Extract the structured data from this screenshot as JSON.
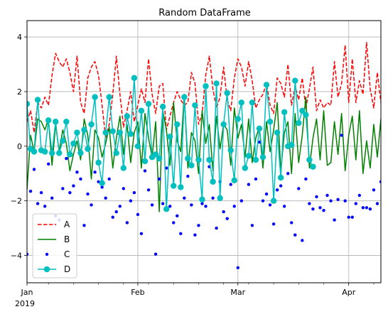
{
  "chart_data": {
    "type": "line",
    "title": "Random DataFrame",
    "xlabel": "",
    "ylabel": "",
    "x_start": "2019-01-01",
    "x_end": "2019-04-10",
    "xlim": [
      "2019-01-01",
      "2019-04-10"
    ],
    "ylim": [
      -5,
      4.6
    ],
    "y_ticks": [
      -4,
      -2,
      0,
      2,
      4
    ],
    "x_ticks": [
      {
        "date": "2019-01-01",
        "label": "Jan",
        "sublabel": "2019"
      },
      {
        "date": "2019-02-01",
        "label": "Feb",
        "sublabel": ""
      },
      {
        "date": "2019-03-01",
        "label": "Mar",
        "sublabel": ""
      },
      {
        "date": "2019-04-01",
        "label": "Apr",
        "sublabel": ""
      }
    ],
    "grid": true,
    "legend_position": "lower-left",
    "series": [
      {
        "name": "A",
        "color": "#ff0000",
        "style": "dashed",
        "values": [
          0.9,
          1.3,
          0.5,
          1.6,
          1.4,
          1.8,
          1.5,
          2.6,
          3.4,
          3.1,
          2.9,
          3.2,
          2.7,
          2.0,
          3.3,
          1.6,
          1.2,
          2.5,
          2.9,
          3.1,
          2.6,
          1.5,
          0.3,
          0.8,
          1.9,
          3.3,
          1.9,
          0.7,
          1.3,
          2.0,
          0.9,
          1.5,
          2.1,
          1.6,
          3.2,
          1.9,
          1.2,
          2.2,
          2.3,
          0.6,
          1.1,
          1.6,
          2.0,
          1.7,
          1.5,
          1.6,
          2.7,
          2.3,
          0.8,
          1.2,
          2.6,
          3.3,
          2.1,
          1.4,
          1.8,
          2.9,
          1.7,
          1.3,
          2.5,
          3.2,
          2.9,
          2.2,
          3.1,
          2.4,
          1.4,
          1.7,
          1.9,
          2.3,
          1.5,
          1.2,
          2.5,
          2.3,
          1.8,
          3.0,
          1.5,
          2.2,
          1.7,
          2.5,
          1.4,
          2.1,
          2.9,
          1.3,
          1.7,
          1.4,
          1.6,
          1.5,
          3.1,
          1.8,
          2.3,
          3.7,
          1.6,
          3.2,
          1.6,
          2.4,
          1.9,
          3.8,
          2.1,
          1.4,
          2.7,
          1.6,
          2.5,
          2.1,
          1.8,
          2.3,
          2.6,
          1.9,
          2.8,
          1.4,
          4.2,
          3.0,
          2.8,
          1.8,
          2.4,
          2.9,
          2.8,
          1.9,
          2.9
        ],
        "_note_x_indexed_by_day_from": "2019-01-01"
      },
      {
        "name": "B",
        "color": "#008000",
        "style": "solid",
        "values": [
          -1.6,
          0.4,
          -0.2,
          1.0,
          0.9,
          0.6,
          1.0,
          -0.7,
          0.8,
          -0.2,
          0.6,
          0.1,
          -0.9,
          -0.3,
          0.2,
          -0.5,
          1.0,
          0.4,
          -1.2,
          0.6,
          0.3,
          -0.4,
          0.1,
          0.7,
          -0.8,
          0.3,
          1.1,
          -0.3,
          0.8,
          -0.6,
          0.5,
          0.9,
          -0.8,
          1.2,
          0.3,
          -0.4,
          0.9,
          -2.4,
          1.3,
          0.6,
          -0.7,
          1.6,
          0.2,
          -0.2,
          1.9,
          -0.8,
          0.5,
          0.2,
          -1.0,
          1.3,
          0.1,
          0.8,
          -0.9,
          1.1,
          -0.1,
          0.8,
          0.6,
          -0.7,
          1.4,
          0.3,
          0.8,
          -0.4,
          1.0,
          -0.6,
          0.3,
          0.7,
          -0.8,
          0.9,
          -0.2,
          0.6,
          1.6,
          -0.9,
          0.5,
          0.9,
          -1.0,
          1.2,
          -0.6,
          0.4,
          1.8,
          -0.8,
          0.3,
          1.0,
          -0.5,
          1.3,
          -0.7,
          -0.6,
          0.9,
          -0.3,
          1.2,
          -0.9,
          0.4,
          1.1,
          -0.5,
          1.3,
          -1.0,
          0.2,
          -0.8,
          0.8,
          -0.4,
          1.0,
          -0.6,
          0.3,
          1.4,
          -0.9,
          0.7,
          -0.3,
          1.1,
          -0.5,
          0.6,
          -0.9,
          0.8,
          -0.4,
          0.2,
          1.6,
          -1.3,
          2.3,
          0.9,
          0.0
        ],
        "_note_x_indexed_by_day_from": "2019-01-01"
      },
      {
        "name": "C",
        "color": "#0000ff",
        "style": "points",
        "values": [
          -3.95,
          -1.65,
          -0.85,
          -2.1,
          -1.7,
          -2.2,
          -0.65,
          -1.9,
          -2.55,
          -2.7,
          -1.55,
          -0.45,
          -1.7,
          -1.45,
          -0.95,
          -1.2,
          -2.9,
          -1.75,
          -2.15,
          -0.95,
          -1.3,
          -1.5,
          -1.9,
          -1.2,
          -2.6,
          -2.4,
          -2.2,
          -1.55,
          -2.8,
          -2.0,
          -1.7,
          -2.5,
          -3.2,
          -0.9,
          -1.6,
          -2.15,
          -3.95,
          -1.2,
          -2.1,
          -0.8,
          -2.2,
          -2.8,
          -2.55,
          -3.2,
          -1.9,
          -1.1,
          -2.15,
          -3.25,
          -2.9,
          -2.1,
          -2.2,
          -0.75,
          -1.9,
          -3.0,
          -1.3,
          -2.4,
          -2.65,
          -1.4,
          -2.2,
          -4.45,
          -2.0,
          -0.75,
          -1.4,
          -2.9,
          -1.2,
          0.15,
          -2.0,
          -1.75,
          -2.15,
          -2.85,
          -1.6,
          -1.45,
          -2.2,
          -1.0,
          -2.8,
          -3.25,
          -1.55,
          -3.45,
          -1.2,
          -2.1,
          -2.3,
          -1.85,
          -2.25,
          -2.35,
          -1.8,
          -2.0,
          -2.7,
          -1.95,
          0.4,
          -2.0,
          -2.6,
          -2.6,
          -2.1,
          -1.8,
          -2.25,
          -2.25,
          -2.3,
          -1.6,
          -2.1,
          -1.3,
          -1.5
        ],
        "_note_x_indexed_by_day_from": "2019-01-01"
      },
      {
        "name": "D",
        "color": "#00bfbf",
        "style": "line-markers",
        "values": [
          1.55,
          -0.1,
          -0.2,
          1.7,
          -0.15,
          -0.2,
          0.95,
          -0.25,
          0.9,
          -0.25,
          0.2,
          0.9,
          -0.3,
          0.1,
          0.5,
          -0.25,
          0.6,
          -0.1,
          0.8,
          1.8,
          -0.6,
          -1.35,
          0.5,
          1.8,
          0.55,
          -0.25,
          0.5,
          -0.8,
          1.1,
          0.45,
          2.5,
          0.0,
          1.3,
          -0.55,
          1.55,
          -0.4,
          -0.3,
          -0.45,
          1.45,
          -2.3,
          0.35,
          -1.45,
          0.8,
          -1.5,
          1.8,
          -0.45,
          -0.7,
          1.5,
          -0.5,
          -1.95,
          2.2,
          -0.5,
          -1.3,
          2.3,
          -1.9,
          0.8,
          1.95,
          -0.15,
          -1.25,
          1.0,
          1.6,
          -0.8,
          -0.35,
          1.6,
          -0.5,
          0.65,
          -0.4,
          2.25,
          0.9,
          -2.0,
          0.5,
          -1.15,
          1.25,
          0.0,
          0.05,
          2.4,
          0.85,
          1.3,
          1.15,
          -0.5,
          -0.75
        ],
        "_note_x_indexed_by_day_from": "2019-01-01"
      }
    ]
  }
}
